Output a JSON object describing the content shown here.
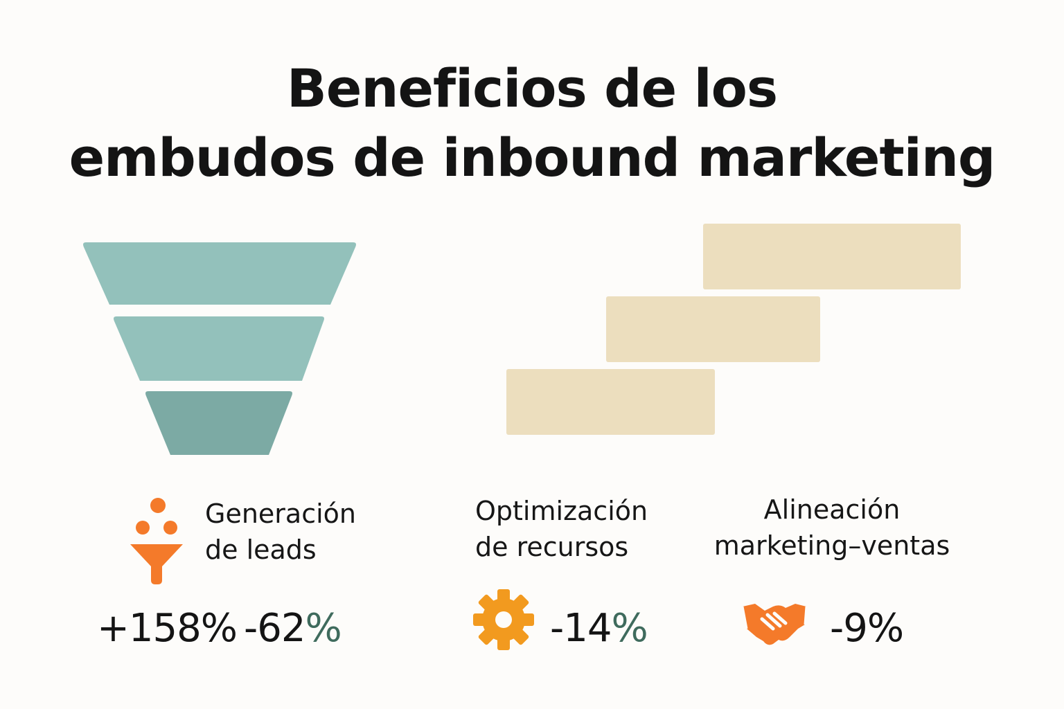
{
  "title": {
    "line1": "Beneficios de los",
    "line2": "embudos de inbound marketing"
  },
  "colors": {
    "funnel_light": "#93c1bb",
    "funnel_dark": "#7caaa4",
    "bar_beige": "#ecdebe",
    "accent_orange": "#f47a2a",
    "gear_orange": "#f29a1f",
    "stat_green": "#3f6b5d",
    "text_dark": "#141414"
  },
  "benefits": [
    {
      "icon": "funnel-dots-icon",
      "label_line1": "Generación",
      "label_line2": "de leads",
      "stat_a": "+158%",
      "stat_b_sign": "-",
      "stat_b_digits": "62",
      "stat_b_pct": "%"
    },
    {
      "icon": "gear-icon",
      "label_line1": "Optimización",
      "label_line2": "de recursos",
      "stat_sign": "-",
      "stat_digits": "14",
      "stat_pct": "%"
    },
    {
      "icon": "handshake-icon",
      "label_line1": "Alineación",
      "label_line2": "marketing–ventas",
      "stat": "-9%"
    }
  ]
}
